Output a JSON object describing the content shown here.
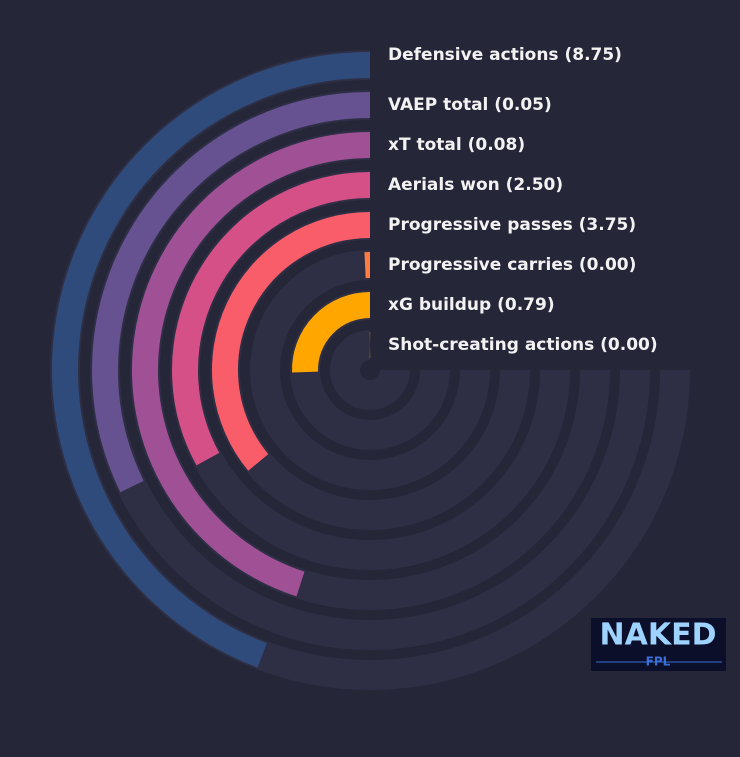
{
  "chart_data": {
    "type": "radial-bar",
    "categories": [
      "Defensive actions (8.75)",
      "VAEP total (0.05)",
      "xT total (0.08)",
      "Aerials won (2.50)",
      "Progressive passes (3.75)",
      "Progressive carries (0.00)",
      "xG buildup (0.79)",
      "Shot-creating actions (0.00)"
    ],
    "values": [
      59,
      43,
      60,
      44,
      48,
      1,
      34,
      0
    ],
    "colors": [
      "#2f4b7c",
      "#665191",
      "#a05195",
      "#d45087",
      "#f95d6a",
      "#ff7c43",
      "#ffa600",
      "#ffa600"
    ],
    "xlim": [
      0,
      100
    ]
  },
  "logo": {
    "title": "NAKED",
    "subtitle": "FPL"
  }
}
